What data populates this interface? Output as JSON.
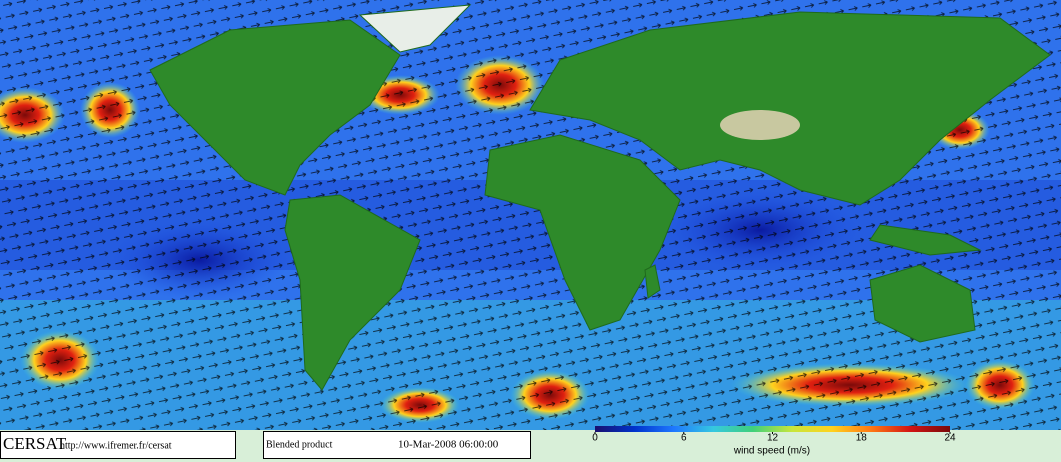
{
  "footer": {
    "logo": "CERSAT",
    "url": "http://www.ifremer.fr/cersat",
    "product": "Blended product",
    "date": "10-Mar-2008 06:00:00"
  },
  "colorbar": {
    "label": "wind speed (m/s)",
    "lim": [
      0,
      24
    ],
    "ticks": [
      0,
      6,
      12,
      18,
      24
    ],
    "colors": [
      "#1a0f6e",
      "#0033cc",
      "#1e78ff",
      "#35c8e0",
      "#3fd07a",
      "#c8e63c",
      "#ffd21e",
      "#ff7814",
      "#d21414",
      "#7a0a0a"
    ]
  }
}
